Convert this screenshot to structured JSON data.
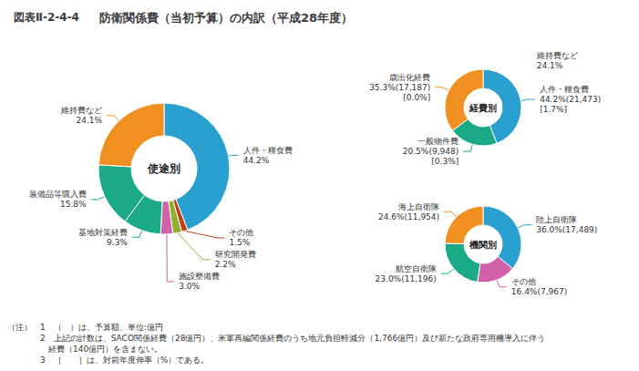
{
  "title": "防衛関係費（当初予算）の内訳（平成28年度）",
  "subtitle": "図表Ⅱ-2-4-4",
  "annotations": [
    "（注）　1　（　）は、予算額、単位:億円",
    "　　　　2　上記の計数は、SACO関係経費（28億円）、米軍再編関係経費のうち地元負担軽減分（1,766億円）及び新たな政府専用機導入に伴う",
    "　　　　　経費（140億円）を含まない。",
    "　　　　3　［　　］は、対前年度伸率（%）である。"
  ],
  "chart_data": [
    {
      "type": "donut",
      "title": "使途別",
      "categories": [
        "人件・糧食費",
        "その他",
        "研究開発費",
        "施設整備費",
        "基地対策経費",
        "装備品等購入費",
        "維持費など"
      ],
      "values": [
        44.2,
        1.5,
        2.2,
        3.0,
        9.3,
        15.8,
        24.1
      ],
      "value_labels": [
        "44.2%",
        "1.5%",
        "2.2%",
        "3.0%",
        "9.3%",
        "15.8%",
        "24.1%"
      ],
      "colors": [
        "#29a0d0",
        "#c0401a",
        "#90b030",
        "#d060a8",
        "#1aaa88",
        "#1aaa88",
        "#f09020"
      ],
      "data_labels": true
    },
    {
      "type": "donut",
      "title": "経費別",
      "categories": [
        "人件・糧食費",
        "一般物件費",
        "歳出化経費"
      ],
      "values": [
        44.2,
        20.5,
        35.3
      ],
      "value_labels": [
        "44.2%(21,473)",
        "20.5%(9,948)",
        "35.3%(17,187)"
      ],
      "growth_labels": [
        "[1.7%]",
        "[0.3%]",
        "[0.0%]"
      ],
      "colors": [
        "#29a0d0",
        "#1aaa88",
        "#f09020"
      ],
      "data_labels": true,
      "annotations": [
        "維持費など",
        "24.1%"
      ]
    },
    {
      "type": "donut",
      "title": "機関別",
      "categories": [
        "陸上自衛隊",
        "その他",
        "航空自衛隊",
        "海上自衛隊"
      ],
      "values": [
        36.0,
        16.4,
        23.0,
        24.6
      ],
      "value_labels": [
        "36.0%(17,489)",
        "16.4%(7,967)",
        "23.0%(11,196)",
        "24.6%(11,954)"
      ],
      "colors": [
        "#29a0d0",
        "#d060a8",
        "#1aaa88",
        "#f09020"
      ],
      "data_labels": true
    }
  ]
}
